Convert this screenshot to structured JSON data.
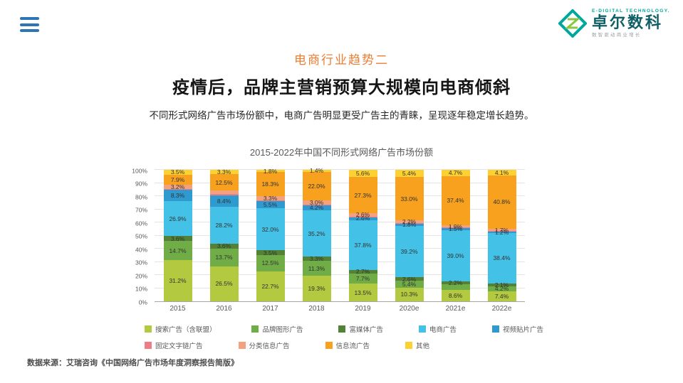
{
  "logo": {
    "top_text": "E-DIGITAL TECHNOLOGY.",
    "name": "卓尔数科",
    "tagline": "数智驱动商业增长"
  },
  "header": {
    "section_label": "电商行业趋势二",
    "title": "疫情后，品牌主营销预算大规模向电商倾斜",
    "subtitle": "不同形式网络广告市场份额中，电商广告明显更受广告主的青睐，呈现逐年稳定增长趋势。"
  },
  "colors": {
    "accent_orange": "#ed7d31",
    "brand_teal": "#00a79d",
    "menu_blue": "#2e75b6"
  },
  "chart_data": {
    "type": "bar",
    "stacked": true,
    "title": "2015-2022年中国不同形式网络广告市场份额",
    "xlabel": "",
    "ylabel": "",
    "unit": "%",
    "ylim": [
      0,
      100
    ],
    "grid": true,
    "legend_position": "bottom",
    "categories": [
      "2015",
      "2016",
      "2017",
      "2018",
      "2019",
      "2020e",
      "2021e",
      "2022e"
    ],
    "y_ticks": [
      "0%",
      "10%",
      "20%",
      "30%",
      "40%",
      "50%",
      "60%",
      "70%",
      "80%",
      "90%",
      "100%"
    ],
    "series": [
      {
        "key": "search-ads",
        "name": "搜索广告（含联盟）",
        "color": "#b3c93f",
        "values": [
          31.2,
          26.5,
          22.7,
          19.3,
          13.5,
          10.3,
          8.6,
          7.4
        ],
        "labels": [
          "31.2%",
          "26.5%",
          "22.7%",
          "19.3%",
          "13.5%",
          "10.3%",
          "8.6%",
          "7.4%"
        ]
      },
      {
        "key": "brand-display-ads",
        "name": "品牌图形广告",
        "color": "#70ad47",
        "values": [
          14.7,
          13.7,
          12.5,
          11.3,
          7.7,
          5.4,
          4.4,
          4.2
        ],
        "labels": [
          "14.7%",
          "13.7%",
          "12.5%",
          "11.3%",
          "7.7%",
          "5.4%",
          "",
          "4.2%"
        ]
      },
      {
        "key": "rich-media-ads",
        "name": "富媒体广告",
        "color": "#538135",
        "values": [
          3.6,
          3.6,
          3.5,
          3.3,
          2.7,
          2.6,
          2.2,
          2.1
        ],
        "labels": [
          "3.6%",
          "3.6%",
          "3.5%",
          "3.3%",
          "2.7%",
          "2.6%",
          "2.2%",
          "2.1%"
        ]
      },
      {
        "key": "ecommerce-ads",
        "name": "电商广告",
        "color": "#43c1e6",
        "values": [
          26.9,
          28.2,
          32.0,
          35.2,
          37.8,
          39.2,
          39.0,
          38.4
        ],
        "labels": [
          "26.9%",
          "28.2%",
          "32.0%",
          "35.2%",
          "37.8%",
          "39.2%",
          "39.0%",
          "38.4%"
        ]
      },
      {
        "key": "video-patch-ads",
        "name": "视频贴片广告",
        "color": "#2e9ad0",
        "values": [
          8.3,
          8.4,
          5.5,
          4.2,
          2.6,
          1.8,
          1.5,
          1.2
        ],
        "labels": [
          "8.3%",
          "8.4%",
          "5.5%",
          "4.2%",
          "2.6%",
          "1.8%",
          "1.5%",
          "1.2%"
        ]
      },
      {
        "key": "fixed-text-link-ads",
        "name": "固定文字链广告",
        "color": "#ee7d87",
        "values": [
          0.7,
          1.3,
          0.4,
          0.3,
          0.2,
          0.1,
          0.3,
          0.1
        ],
        "labels": [
          "",
          "",
          "",
          "",
          "",
          "",
          "",
          ""
        ]
      },
      {
        "key": "classified-ads",
        "name": "分类信息广告",
        "color": "#f4a27e",
        "values": [
          3.2,
          2.5,
          3.3,
          3.0,
          2.6,
          2.2,
          1.9,
          1.7
        ],
        "labels": [
          "3.2%",
          "",
          "3.3%",
          "3.0%",
          "2.6%",
          "2.2%",
          "1.9%",
          "1.7%"
        ]
      },
      {
        "key": "feed-ads",
        "name": "信息流广告",
        "color": "#f7a11e",
        "values": [
          7.9,
          12.5,
          18.3,
          22.0,
          27.3,
          33.0,
          37.4,
          40.8
        ],
        "labels": [
          "7.9%",
          "12.5%",
          "18.3%",
          "22.0%",
          "27.3%",
          "33.0%",
          "37.4%",
          "40.8%"
        ]
      },
      {
        "key": "other-ads",
        "name": "其他",
        "color": "#fdd130",
        "values": [
          3.5,
          3.3,
          1.8,
          1.4,
          5.6,
          5.4,
          4.7,
          4.1
        ],
        "labels": [
          "3.5%",
          "3.3%",
          "1.8%",
          "1.4%",
          "5.6%",
          "5.4%",
          "4.7%",
          "4.1%"
        ]
      }
    ],
    "legend_rows": [
      [
        0,
        1,
        2,
        3,
        4
      ],
      [
        5,
        6,
        7,
        8
      ]
    ]
  },
  "source": "数据来源：艾瑞咨询《中国网络广告市场年度洞察报告简版》"
}
